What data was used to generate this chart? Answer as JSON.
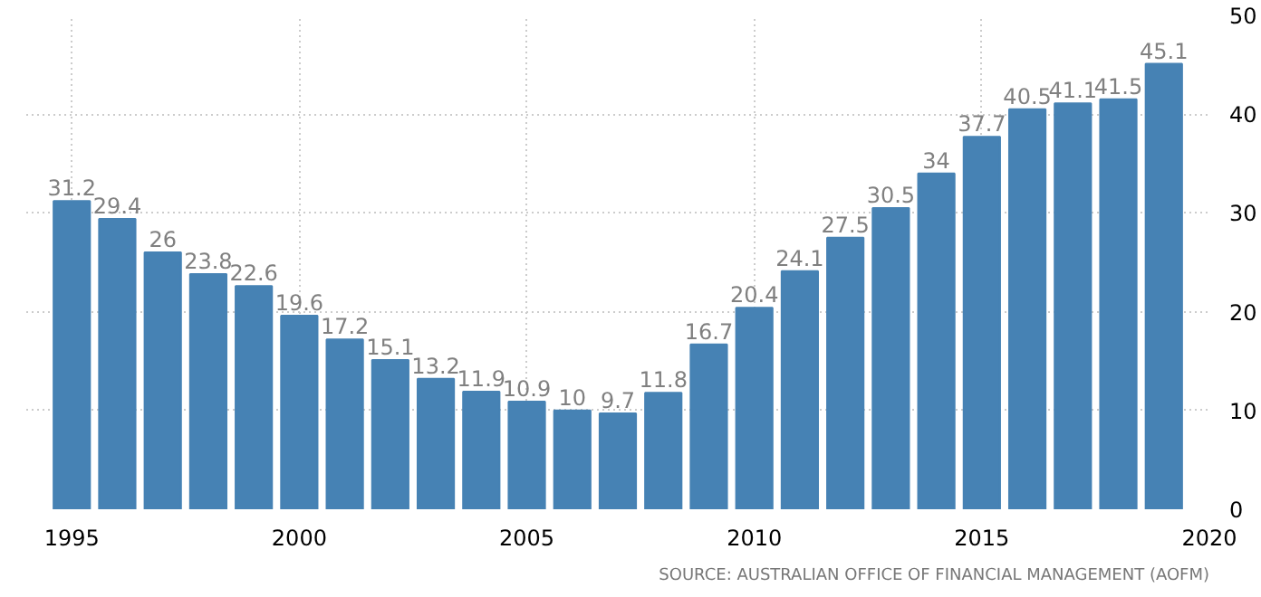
{
  "chart_data": {
    "type": "bar",
    "x": [
      1995,
      1996,
      1997,
      1998,
      1999,
      2000,
      2001,
      2002,
      2003,
      2004,
      2005,
      2006,
      2007,
      2008,
      2009,
      2010,
      2011,
      2012,
      2013,
      2014,
      2015,
      2016,
      2017,
      2018,
      2019
    ],
    "values": [
      31.2,
      29.4,
      26,
      23.8,
      22.6,
      19.6,
      17.2,
      15.1,
      13.2,
      11.9,
      10.9,
      10,
      9.7,
      11.8,
      16.7,
      20.4,
      24.1,
      27.5,
      30.5,
      34,
      37.7,
      40.5,
      41.1,
      41.5,
      45.1
    ],
    "color": "#4682b4",
    "xlim": [
      1994,
      2020
    ],
    "xticks": [
      1995,
      2000,
      2005,
      2010,
      2015,
      2020
    ],
    "ylim": [
      0,
      50
    ],
    "yticks": [
      0,
      10,
      20,
      30,
      40,
      50
    ],
    "grid": true,
    "data_labels": true,
    "annotations": [
      "SOURCE: AUSTRALIAN OFFICE OF FINANCIAL MANAGEMENT (AOFM)"
    ]
  }
}
